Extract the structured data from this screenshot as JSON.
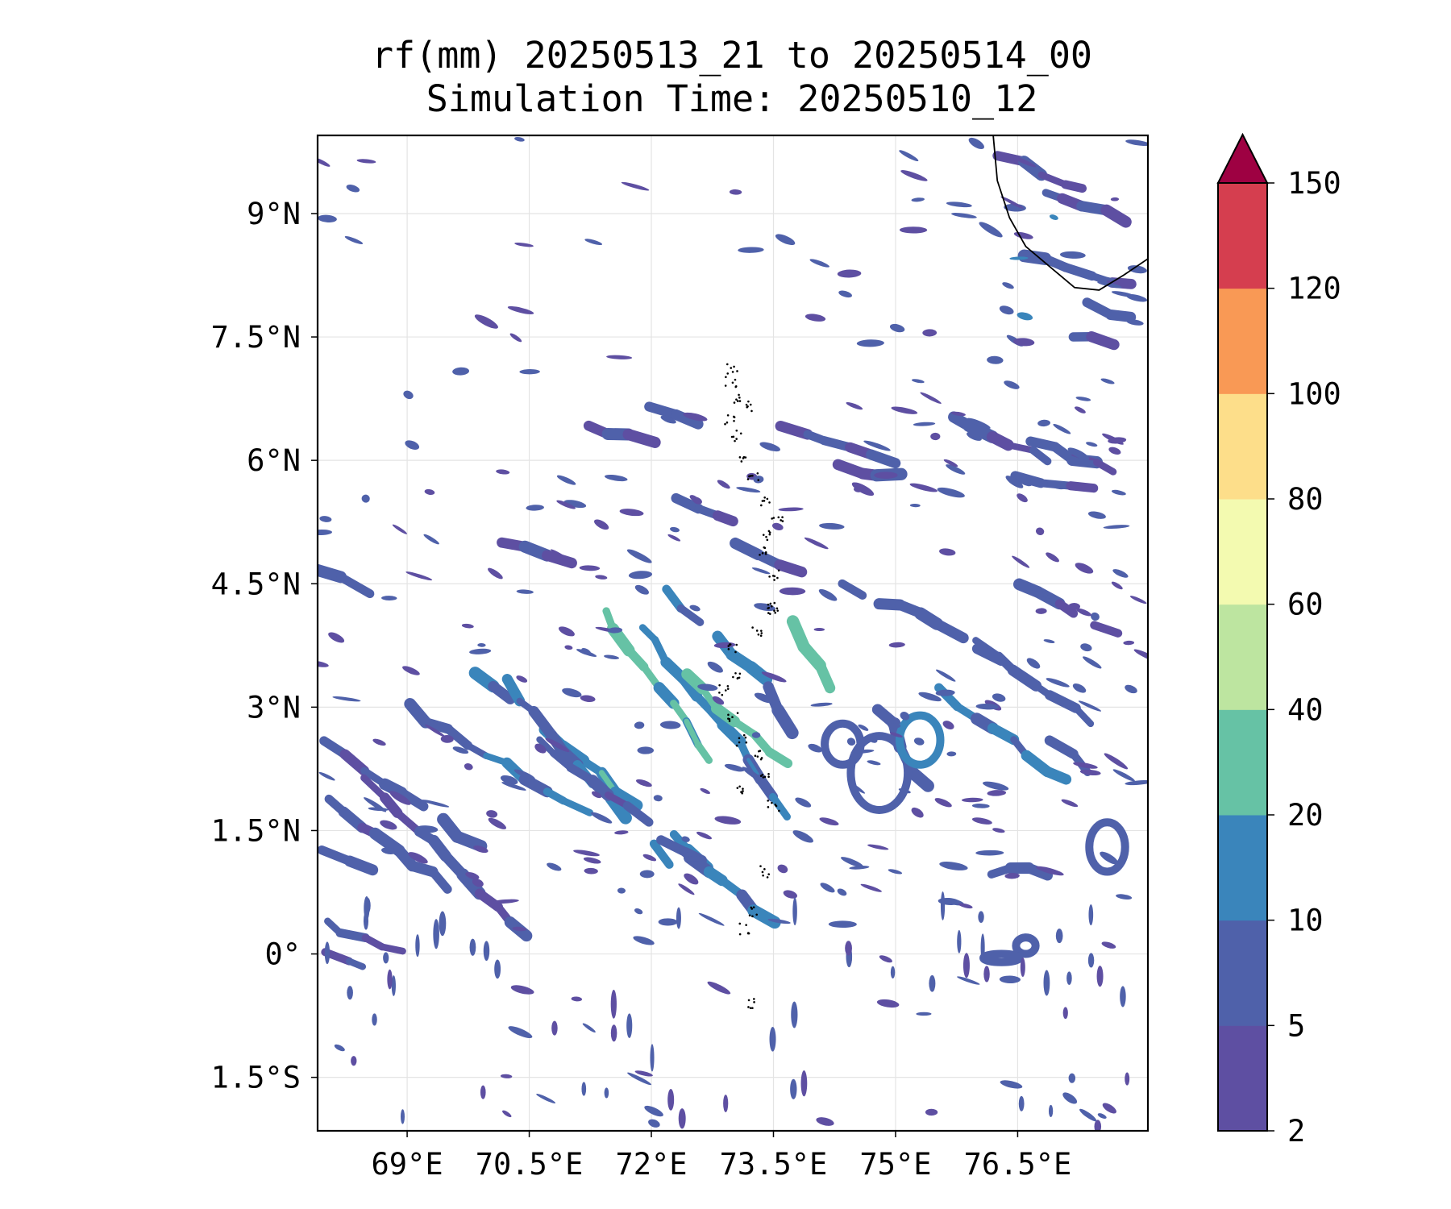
{
  "title": {
    "line1": "rf(mm) 20250513_21 to 20250514_00",
    "line2": "Simulation Time: 20250510_12"
  },
  "map": {
    "lon_range": [
      67.9,
      78.1
    ],
    "lat_range": [
      -2.15,
      9.95
    ],
    "x_ticks": [
      {
        "value": 69,
        "label": "69°E"
      },
      {
        "value": 70.5,
        "label": "70.5°E"
      },
      {
        "value": 72,
        "label": "72°E"
      },
      {
        "value": 73.5,
        "label": "73.5°E"
      },
      {
        "value": 75,
        "label": "75°E"
      },
      {
        "value": 76.5,
        "label": "76.5°E"
      }
    ],
    "y_ticks": [
      {
        "value": 9,
        "label": "9°N"
      },
      {
        "value": 7.5,
        "label": "7.5°N"
      },
      {
        "value": 6,
        "label": "6°N"
      },
      {
        "value": 4.5,
        "label": "4.5°N"
      },
      {
        "value": 3,
        "label": "3°N"
      },
      {
        "value": 1.5,
        "label": "1.5°N"
      },
      {
        "value": 0,
        "label": "0°"
      },
      {
        "value": -1.5,
        "label": "1.5°S"
      }
    ],
    "coastline": [
      [
        76.2,
        9.95
      ],
      [
        76.25,
        9.4
      ],
      [
        76.4,
        8.95
      ],
      [
        76.6,
        8.6
      ],
      [
        76.9,
        8.35
      ],
      [
        77.2,
        8.1
      ],
      [
        77.5,
        8.07
      ],
      [
        77.8,
        8.25
      ],
      [
        78.1,
        8.45
      ]
    ],
    "gridlines": true
  },
  "colorbar": {
    "levels": [
      2,
      5,
      10,
      20,
      40,
      60,
      80,
      100,
      120,
      150
    ],
    "tick_labels": [
      "2",
      "5",
      "10",
      "20",
      "40",
      "60",
      "80",
      "100",
      "120",
      "150"
    ],
    "colors": [
      "#5e4fa2",
      "#4f61aa",
      "#3a85bb",
      "#66c2a5",
      "#bde5a0",
      "#f3fab0",
      "#fdde8a",
      "#f99955",
      "#d53e4f"
    ],
    "extend_color": "#9e0142"
  },
  "rainfall": {
    "bands": [
      {
        "lon": 68.0,
        "lat": 2.6,
        "dlon": 1.9,
        "dlat": -1.3,
        "v": 8
      },
      {
        "lon": 68.0,
        "lat": 1.9,
        "dlon": 1.5,
        "dlat": -1.1,
        "v": 7
      },
      {
        "lon": 68.0,
        "lat": 1.3,
        "dlon": 0.6,
        "dlat": -0.25,
        "v": 6
      },
      {
        "lon": 68.0,
        "lat": 0.4,
        "dlon": 0.9,
        "dlat": -0.4,
        "v": 6
      },
      {
        "lon": 68.0,
        "lat": 0.05,
        "dlon": 0.5,
        "dlat": -0.2,
        "v": 6
      },
      {
        "lon": 68.5,
        "lat": 2.1,
        "dlon": 2.0,
        "dlat": -1.9,
        "v": 7
      },
      {
        "lon": 69.0,
        "lat": 3.0,
        "dlon": 2.2,
        "dlat": -1.3,
        "v": 12
      },
      {
        "lon": 69.6,
        "lat": 3.6,
        "dlon": 3.3,
        "dlat": -2.7,
        "v": 16
      },
      {
        "lon": 70.2,
        "lat": 3.3,
        "dlon": 2.0,
        "dlat": -2.2,
        "v": 10
      },
      {
        "lon": 70.6,
        "lat": 2.6,
        "dlon": 2.0,
        "dlat": -1.5,
        "v": 8
      },
      {
        "lon": 71.4,
        "lat": 4.2,
        "dlon": 1.5,
        "dlat": -2.1,
        "v": 22
      },
      {
        "lon": 71.9,
        "lat": 4.0,
        "dlon": 1.8,
        "dlat": -2.3,
        "v": 14
      },
      {
        "lon": 72.4,
        "lat": 3.4,
        "dlon": 1.3,
        "dlat": -1.1,
        "v": 28
      },
      {
        "lon": 72.2,
        "lat": 4.4,
        "dlon": 1.2,
        "dlat": -1.1,
        "v": 12
      },
      {
        "lon": 73.7,
        "lat": 4.0,
        "dlon": 0.5,
        "dlat": -0.8,
        "v": 30
      },
      {
        "lon": 73.4,
        "lat": 3.2,
        "dlon": 0.3,
        "dlat": -0.5,
        "v": 12
      },
      {
        "lon": 72.5,
        "lat": 1.2,
        "dlon": 1.0,
        "dlat": -0.8,
        "v": 10
      },
      {
        "lon": 74.8,
        "lat": 3.0,
        "dlon": 0.6,
        "dlat": -1.0,
        "v": 9
      },
      {
        "lon": 75.5,
        "lat": 3.2,
        "dlon": 1.6,
        "dlat": -1.1,
        "v": 12
      },
      {
        "lon": 76.0,
        "lat": 3.8,
        "dlon": 1.4,
        "dlat": -1.0,
        "v": 9
      },
      {
        "lon": 76.2,
        "lat": 1.0,
        "dlon": 0.7,
        "dlat": 0.0,
        "v": 7
      },
      {
        "lon": 76.5,
        "lat": 4.5,
        "dlon": 1.2,
        "dlat": -0.6,
        "v": 8
      },
      {
        "lon": 74.3,
        "lat": 4.5,
        "dlon": 1.0,
        "dlat": -0.4,
        "v": 7
      },
      {
        "lon": 75.3,
        "lat": 4.1,
        "dlon": 1.0,
        "dlat": -0.5,
        "v": 7
      },
      {
        "lon": 76.9,
        "lat": 2.6,
        "dlon": 1.0,
        "dlat": -0.7,
        "v": 9
      },
      {
        "lon": 76.2,
        "lat": 5.8,
        "dlon": 1.2,
        "dlat": -0.1,
        "v": 6
      },
      {
        "lon": 71.0,
        "lat": 6.5,
        "dlon": 1.0,
        "dlat": -0.3,
        "v": 6
      },
      {
        "lon": 72.0,
        "lat": 6.7,
        "dlon": 0.8,
        "dlat": -0.4,
        "v": 6
      },
      {
        "lon": 73.6,
        "lat": 6.4,
        "dlon": 1.4,
        "dlat": -0.4,
        "v": 6
      },
      {
        "lon": 74.3,
        "lat": 5.9,
        "dlon": 1.0,
        "dlat": -0.1,
        "v": 6
      },
      {
        "lon": 75.7,
        "lat": 6.5,
        "dlon": 1.2,
        "dlat": -0.5,
        "v": 6
      },
      {
        "lon": 76.7,
        "lat": 6.2,
        "dlon": 1.0,
        "dlat": -0.3,
        "v": 6
      },
      {
        "lon": 72.3,
        "lat": 5.5,
        "dlon": 0.7,
        "dlat": -0.2,
        "v": 6
      },
      {
        "lon": 70.2,
        "lat": 5.0,
        "dlon": 0.8,
        "dlat": -0.2,
        "v": 6
      },
      {
        "lon": 73.0,
        "lat": 5.0,
        "dlon": 0.8,
        "dlat": -0.4,
        "v": 7
      },
      {
        "lon": 67.9,
        "lat": 4.7,
        "dlon": 0.6,
        "dlat": -0.3,
        "v": 7
      },
      {
        "lon": 76.6,
        "lat": 8.5,
        "dlon": 1.3,
        "dlat": -0.4,
        "v": 8
      },
      {
        "lon": 77.1,
        "lat": 8.0,
        "dlon": 0.8,
        "dlat": -0.3,
        "v": 8
      },
      {
        "lon": 76.8,
        "lat": 9.3,
        "dlon": 1.0,
        "dlat": -0.4,
        "v": 7
      },
      {
        "lon": 76.3,
        "lat": 9.7,
        "dlon": 1.0,
        "dlat": -0.4,
        "v": 6
      },
      {
        "lon": 76.9,
        "lat": 7.6,
        "dlon": 0.8,
        "dlat": -0.2,
        "v": 6
      }
    ],
    "blobs": [
      {
        "lon": 74.35,
        "lat": 2.55,
        "rx": 0.22,
        "ry": 0.25,
        "v": 9
      },
      {
        "lon": 74.8,
        "lat": 2.2,
        "rx": 0.35,
        "ry": 0.45,
        "v": 8
      },
      {
        "lon": 75.3,
        "lat": 2.6,
        "rx": 0.25,
        "ry": 0.3,
        "v": 10
      },
      {
        "lon": 77.6,
        "lat": 1.3,
        "rx": 0.22,
        "ry": 0.3,
        "v": 7
      },
      {
        "lon": 76.6,
        "lat": 0.1,
        "rx": 0.12,
        "ry": 0.1,
        "v": 6
      },
      {
        "lon": 76.3,
        "lat": -0.05,
        "rx": 0.22,
        "ry": 0.05,
        "v": 6
      }
    ]
  },
  "atolls": [
    [
      73.0,
      7.1
    ],
    [
      72.98,
      6.95
    ],
    [
      73.05,
      6.75
    ],
    [
      73.2,
      6.65
    ],
    [
      72.97,
      6.5
    ],
    [
      73.05,
      6.3
    ],
    [
      73.1,
      6.05
    ],
    [
      73.25,
      5.8
    ],
    [
      73.4,
      5.5
    ],
    [
      73.55,
      5.3
    ],
    [
      73.4,
      5.1
    ],
    [
      73.4,
      4.9
    ],
    [
      73.5,
      4.6
    ],
    [
      73.5,
      4.2
    ],
    [
      73.5,
      4.2
    ],
    [
      73.3,
      3.9
    ],
    [
      73.0,
      3.7
    ],
    [
      73.05,
      3.4
    ],
    [
      72.9,
      3.2
    ],
    [
      73.0,
      2.9
    ],
    [
      73.1,
      2.6
    ],
    [
      73.3,
      2.4
    ],
    [
      73.4,
      2.2
    ],
    [
      73.1,
      2.0
    ],
    [
      73.5,
      1.8
    ],
    [
      73.4,
      1.0
    ],
    [
      73.25,
      0.5
    ],
    [
      73.15,
      0.3
    ],
    [
      73.25,
      -0.6
    ]
  ]
}
